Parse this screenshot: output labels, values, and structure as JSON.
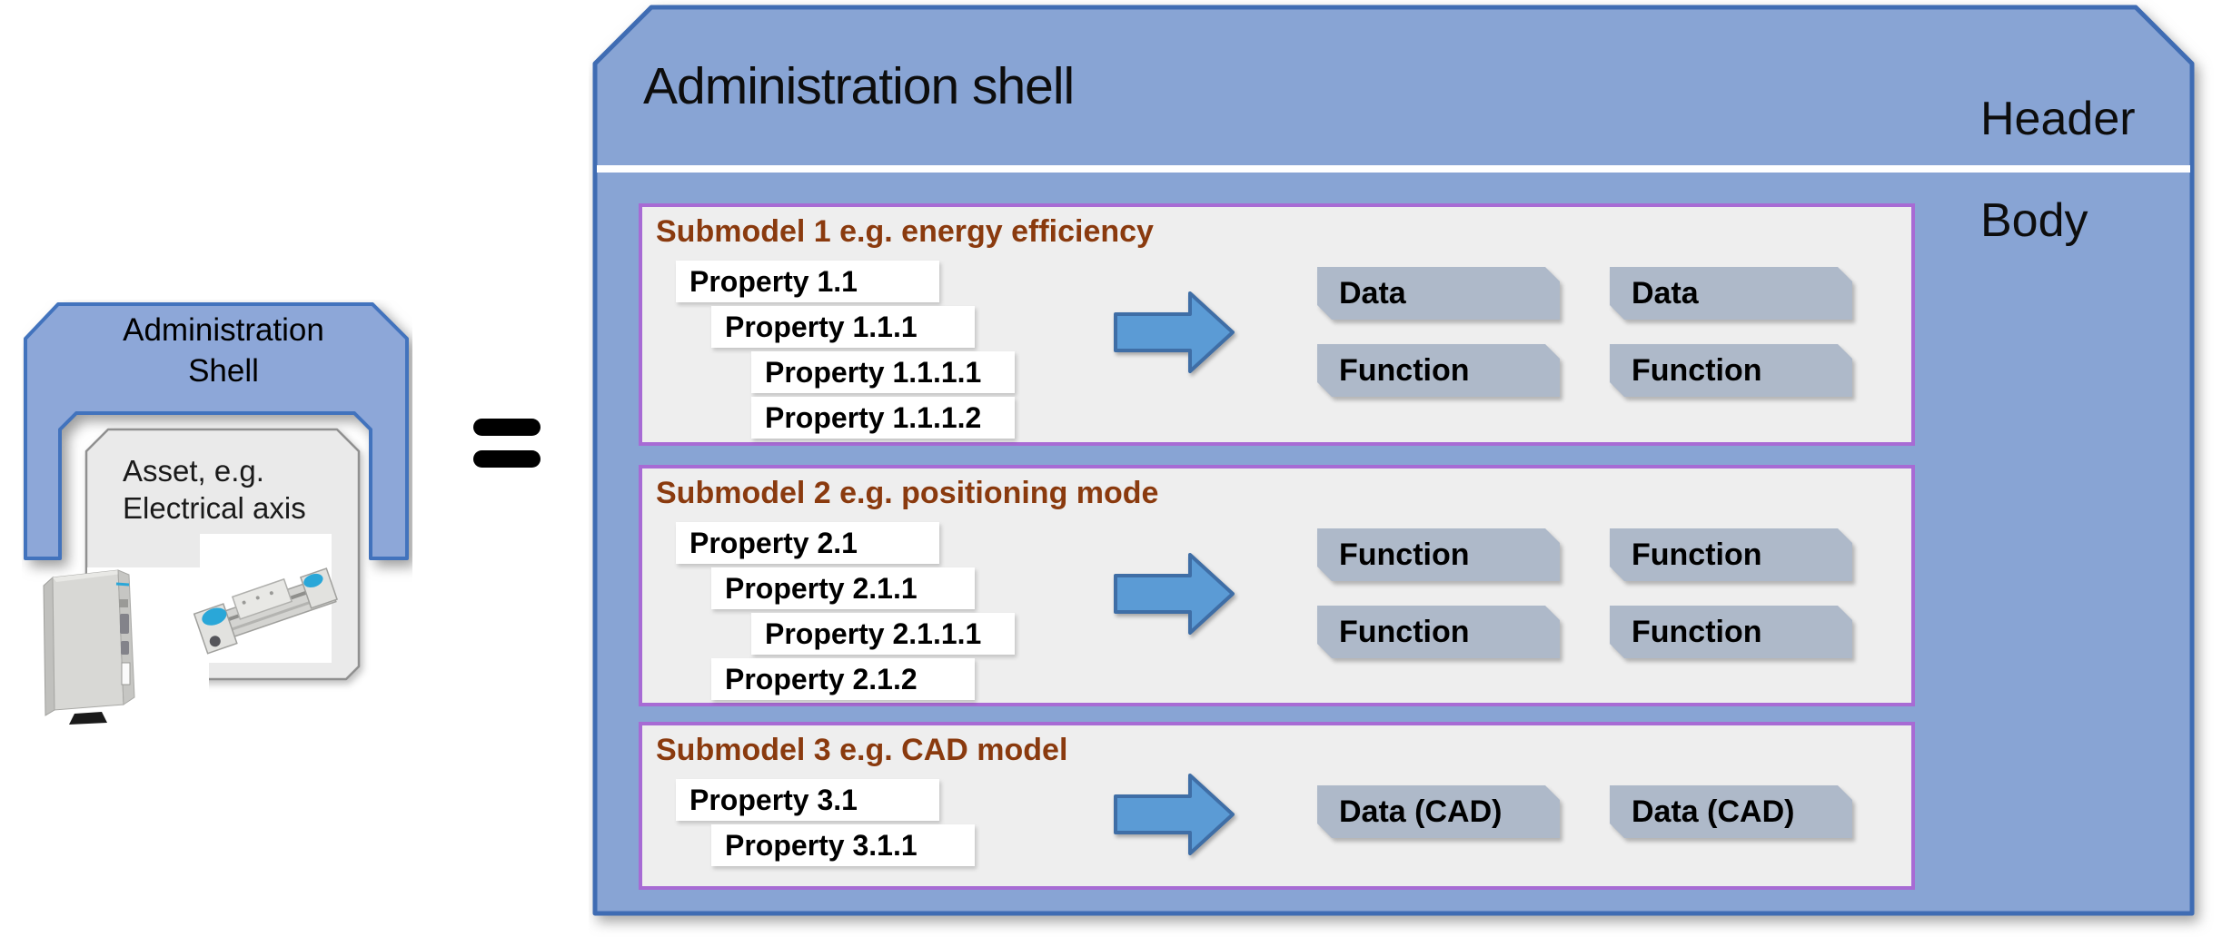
{
  "left_figure": {
    "shell_title": "Administration Shell",
    "asset_label": "Asset, e.g. Electrical axis",
    "images": {
      "controller_image": "servo-drive-controller-photo",
      "axis_image": "electrical-linear-axis-photo"
    }
  },
  "icons": {
    "equals": "equals-sign",
    "flow_arrow": "right-arrow"
  },
  "main_shell": {
    "title": "Administration shell",
    "header_label": "Header",
    "body_label": "Body",
    "submodels": [
      {
        "title": "Submodel 1 e.g. energy efficiency",
        "properties": [
          {
            "label": "Property 1.1",
            "level": 1
          },
          {
            "label": "Property 1.1.1",
            "level": 2
          },
          {
            "label": "Property 1.1.1.1",
            "level": 3
          },
          {
            "label": "Property 1.1.1.2",
            "level": 3
          }
        ],
        "outputs": [
          [
            "Data",
            "Data"
          ],
          [
            "Function",
            "Function"
          ]
        ]
      },
      {
        "title": "Submodel 2 e.g. positioning mode",
        "properties": [
          {
            "label": "Property 2.1",
            "level": 1
          },
          {
            "label": "Property 2.1.1",
            "level": 2
          },
          {
            "label": "Property 2.1.1.1",
            "level": 3
          },
          {
            "label": "Property 2.1.2",
            "level": 2
          }
        ],
        "outputs": [
          [
            "Function",
            "Function"
          ],
          [
            "Function",
            "Function"
          ]
        ]
      },
      {
        "title": "Submodel 3 e.g. CAD model",
        "properties": [
          {
            "label": "Property 3.1",
            "level": 1
          },
          {
            "label": "Property 3.1.1",
            "level": 2
          }
        ],
        "outputs": [
          [
            "Data (CAD)",
            "Data (CAD)"
          ]
        ]
      }
    ]
  },
  "colors": {
    "shell_fill": "#88a4d4",
    "shell_border": "#3f6cb3",
    "bridge_fill": "#8da7d8",
    "bridge_border": "#4273bd",
    "submodel_border": "#a76bd4",
    "submodel_fill": "#eeeeee",
    "plaque_fill": "#aeb9c9",
    "arrow_fill": "#5b9bd5",
    "arrow_border": "#3f6ea6",
    "submodel_title_text": "#8a3a0e",
    "accent_cyan": "#2aa7d8"
  }
}
